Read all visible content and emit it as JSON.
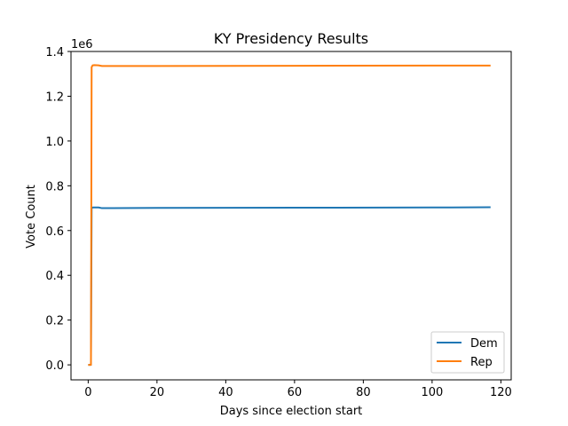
{
  "chart_data": {
    "type": "line",
    "title": "KY Presidency Results",
    "xlabel": "Days since election start",
    "ylabel": "Vote Count",
    "offset_label": "1e6",
    "xlim": [
      -5,
      123
    ],
    "ylim": [
      -0.067,
      1.4
    ],
    "xticks": [
      0,
      20,
      40,
      60,
      80,
      100,
      120
    ],
    "xtick_labels": [
      "0",
      "20",
      "40",
      "60",
      "80",
      "100",
      "120"
    ],
    "yticks": [
      0.0,
      0.2,
      0.4,
      0.6,
      0.8,
      1.0,
      1.2,
      1.4
    ],
    "ytick_labels": [
      "0.0",
      "0.2",
      "0.4",
      "0.6",
      "0.8",
      "1.0",
      "1.2",
      "1.4"
    ],
    "grid": false,
    "legend_position": "bottom-right",
    "series": [
      {
        "name": "Dem",
        "color": "#1f77b4",
        "x": [
          0,
          0.8,
          1.0,
          1.3,
          1.8,
          3.0,
          4.0,
          20,
          60,
          100,
          117
        ],
        "y": [
          0.0,
          0.0,
          0.7,
          0.703,
          0.703,
          0.703,
          0.7,
          0.701,
          0.702,
          0.703,
          0.704
        ]
      },
      {
        "name": "Rep",
        "color": "#ff7f0e",
        "x": [
          0,
          0.8,
          1.0,
          1.3,
          1.8,
          3.0,
          4.0,
          20,
          60,
          100,
          117
        ],
        "y": [
          0.0,
          0.0,
          1.33,
          1.338,
          1.339,
          1.338,
          1.335,
          1.335,
          1.336,
          1.337,
          1.337
        ]
      }
    ]
  }
}
